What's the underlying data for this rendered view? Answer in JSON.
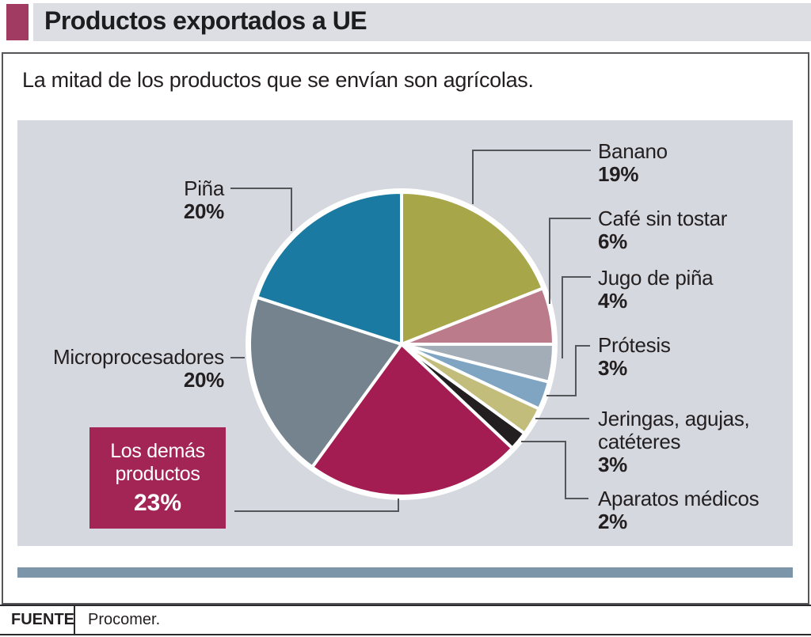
{
  "header": {
    "title": "Productos exportados a UE"
  },
  "subtitle": "La mitad de los productos que se envían son agrícolas.",
  "source": {
    "label": "FUENTE",
    "value": "Procomer."
  },
  "colors": {
    "accent": "#a13b62",
    "header_bar": "#dcdee4",
    "chart_background": "#d5d8df",
    "divider_bar": "#7d95a9",
    "callout_line": "#55565a",
    "highlight_box": "#a32556",
    "text": "#231f20"
  },
  "chart_data": {
    "type": "pie",
    "title": "Productos exportados a UE",
    "subtitle": "La mitad de los productos que se envían son agrícolas.",
    "units": "%",
    "start_angle_deg": 0,
    "direction": "clockwise",
    "legend_position": "callout-labels",
    "slices": [
      {
        "label": "Banano",
        "value": 19,
        "pct_label": "19%",
        "color": "#a7a648"
      },
      {
        "label": "Café sin tostar",
        "value": 6,
        "pct_label": "6%",
        "color": "#bc7b8b"
      },
      {
        "label": "Jugo de piña",
        "value": 4,
        "pct_label": "4%",
        "color": "#a3adb8"
      },
      {
        "label": "Prótesis",
        "value": 3,
        "pct_label": "3%",
        "color": "#7fa5c3"
      },
      {
        "label": "Jeringas, agujas, catéteres",
        "value": 3,
        "pct_label": "3%",
        "color": "#c3bd7c"
      },
      {
        "label": "Aparatos médicos",
        "value": 2,
        "pct_label": "2%",
        "color": "#231f20"
      },
      {
        "label": "Los demás productos",
        "value": 23,
        "pct_label": "23%",
        "color": "#a31d53"
      },
      {
        "label": "Microprocesadores",
        "value": 20,
        "pct_label": "20%",
        "color": "#75838f"
      },
      {
        "label": "Piña",
        "value": 20,
        "pct_label": "20%",
        "color": "#1a7aa2"
      }
    ]
  }
}
